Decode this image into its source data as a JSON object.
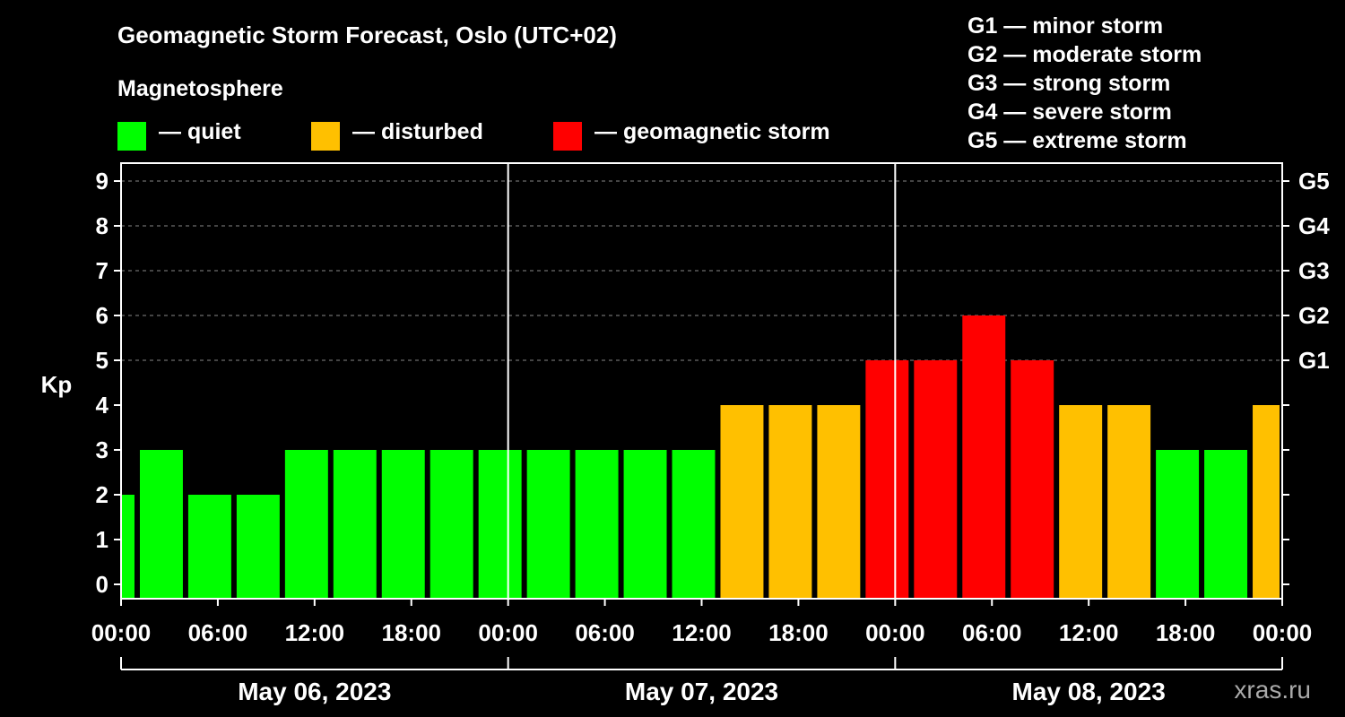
{
  "title": "Geomagnetic Storm Forecast, Oslo (UTC+02)",
  "magnetosphere": {
    "heading": "Magnetosphere",
    "legend": [
      {
        "label": "— quiet",
        "color": "#00ff00"
      },
      {
        "label": "— disturbed",
        "color": "#ffc000"
      },
      {
        "label": "— geomagnetic storm",
        "color": "#ff0000"
      }
    ]
  },
  "storm_levels": [
    "G1 — minor storm",
    "G2 — moderate storm",
    "G3 — strong storm",
    "G4 — severe storm",
    "G5 — extreme storm"
  ],
  "watermark": "xras.ru",
  "chart_data": {
    "type": "bar",
    "ylabel": "Kp",
    "ylim": [
      0,
      9
    ],
    "yticks": [
      "0",
      "1",
      "2",
      "3",
      "4",
      "5",
      "6",
      "7",
      "8",
      "9"
    ],
    "right_ticks": [
      {
        "kp": 5,
        "label": "G1"
      },
      {
        "kp": 6,
        "label": "G2"
      },
      {
        "kp": 7,
        "label": "G3"
      },
      {
        "kp": 8,
        "label": "G4"
      },
      {
        "kp": 9,
        "label": "G5"
      }
    ],
    "xtick_labels": [
      "00:00",
      "06:00",
      "12:00",
      "18:00",
      "00:00",
      "06:00",
      "12:00",
      "18:00",
      "00:00",
      "06:00",
      "12:00",
      "18:00",
      "00:00"
    ],
    "dates": [
      "May 06, 2023",
      "May 07, 2023",
      "May 08, 2023"
    ],
    "x_range_hours": [
      0,
      72
    ],
    "bar_interval_hours": 3,
    "bars": [
      {
        "start_hour": 0,
        "end_hour": 1,
        "kp": 2,
        "level": "quiet"
      },
      {
        "start_hour": 1,
        "end_hour": 4,
        "kp": 3,
        "level": "quiet"
      },
      {
        "start_hour": 4,
        "end_hour": 7,
        "kp": 2,
        "level": "quiet"
      },
      {
        "start_hour": 7,
        "end_hour": 10,
        "kp": 2,
        "level": "quiet"
      },
      {
        "start_hour": 10,
        "end_hour": 13,
        "kp": 3,
        "level": "quiet"
      },
      {
        "start_hour": 13,
        "end_hour": 16,
        "kp": 3,
        "level": "quiet"
      },
      {
        "start_hour": 16,
        "end_hour": 19,
        "kp": 3,
        "level": "quiet"
      },
      {
        "start_hour": 19,
        "end_hour": 22,
        "kp": 3,
        "level": "quiet"
      },
      {
        "start_hour": 22,
        "end_hour": 25,
        "kp": 3,
        "level": "quiet"
      },
      {
        "start_hour": 25,
        "end_hour": 28,
        "kp": 3,
        "level": "quiet"
      },
      {
        "start_hour": 28,
        "end_hour": 31,
        "kp": 3,
        "level": "quiet"
      },
      {
        "start_hour": 31,
        "end_hour": 34,
        "kp": 3,
        "level": "quiet"
      },
      {
        "start_hour": 34,
        "end_hour": 37,
        "kp": 3,
        "level": "quiet"
      },
      {
        "start_hour": 37,
        "end_hour": 40,
        "kp": 4,
        "level": "disturbed"
      },
      {
        "start_hour": 40,
        "end_hour": 43,
        "kp": 4,
        "level": "disturbed"
      },
      {
        "start_hour": 43,
        "end_hour": 46,
        "kp": 4,
        "level": "disturbed"
      },
      {
        "start_hour": 46,
        "end_hour": 49,
        "kp": 5,
        "level": "storm"
      },
      {
        "start_hour": 49,
        "end_hour": 52,
        "kp": 5,
        "level": "storm"
      },
      {
        "start_hour": 52,
        "end_hour": 55,
        "kp": 6,
        "level": "storm"
      },
      {
        "start_hour": 55,
        "end_hour": 58,
        "kp": 5,
        "level": "storm"
      },
      {
        "start_hour": 58,
        "end_hour": 61,
        "kp": 4,
        "level": "disturbed"
      },
      {
        "start_hour": 61,
        "end_hour": 64,
        "kp": 4,
        "level": "disturbed"
      },
      {
        "start_hour": 64,
        "end_hour": 67,
        "kp": 3,
        "level": "quiet"
      },
      {
        "start_hour": 67,
        "end_hour": 70,
        "kp": 3,
        "level": "quiet"
      },
      {
        "start_hour": 70,
        "end_hour": 72,
        "kp": 4,
        "level": "disturbed"
      }
    ],
    "level_colors": {
      "quiet": "#00ff00",
      "disturbed": "#ffc000",
      "storm": "#ff0000"
    },
    "day_separators_hours": [
      24,
      48
    ]
  }
}
